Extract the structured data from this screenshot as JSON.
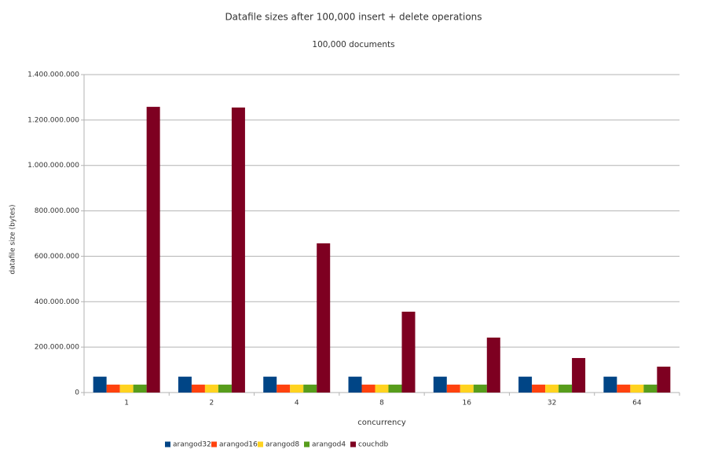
{
  "chart_data": {
    "type": "bar",
    "title": "Datafile sizes after 100,000 insert + delete operations",
    "subtitle": "100,000 documents",
    "x_label": "concurrency",
    "y_label": "datafile size (bytes)",
    "categories": [
      "1",
      "2",
      "4",
      "8",
      "16",
      "32",
      "64"
    ],
    "series": [
      {
        "name": "arangod32",
        "color": "#004586",
        "values": [
          70000000,
          70000000,
          70000000,
          70000000,
          70000000,
          70000000,
          70000000
        ]
      },
      {
        "name": "arangod16",
        "color": "#ff420e",
        "values": [
          35000000,
          35000000,
          35000000,
          35000000,
          35000000,
          35000000,
          35000000
        ]
      },
      {
        "name": "arangod8",
        "color": "#ffd320",
        "values": [
          35000000,
          35000000,
          35000000,
          35000000,
          35000000,
          35000000,
          35000000
        ]
      },
      {
        "name": "arangod4",
        "color": "#579d1c",
        "values": [
          35000000,
          35000000,
          35000000,
          35000000,
          35000000,
          35000000,
          35000000
        ]
      },
      {
        "name": "couchdb",
        "color": "#7e0021",
        "values": [
          1258000000,
          1255000000,
          657000000,
          356000000,
          242000000,
          152000000,
          114000000
        ]
      }
    ],
    "ylim": [
      0,
      1400000000
    ],
    "yticks": [
      0,
      {
        "value": 200000000,
        "label": "200.000.000"
      },
      {
        "value": 400000000,
        "label": "400.000.000"
      },
      {
        "value": 600000000,
        "label": "600.000.000"
      },
      {
        "value": 800000000,
        "label": "800.000.000"
      },
      {
        "value": 1000000000,
        "label": "1.000.000.000"
      },
      {
        "value": 1200000000,
        "label": "1.200.000.000"
      },
      {
        "value": 1400000000,
        "label": "1.400.000.000"
      }
    ],
    "grid": true,
    "legend": "bottom"
  }
}
